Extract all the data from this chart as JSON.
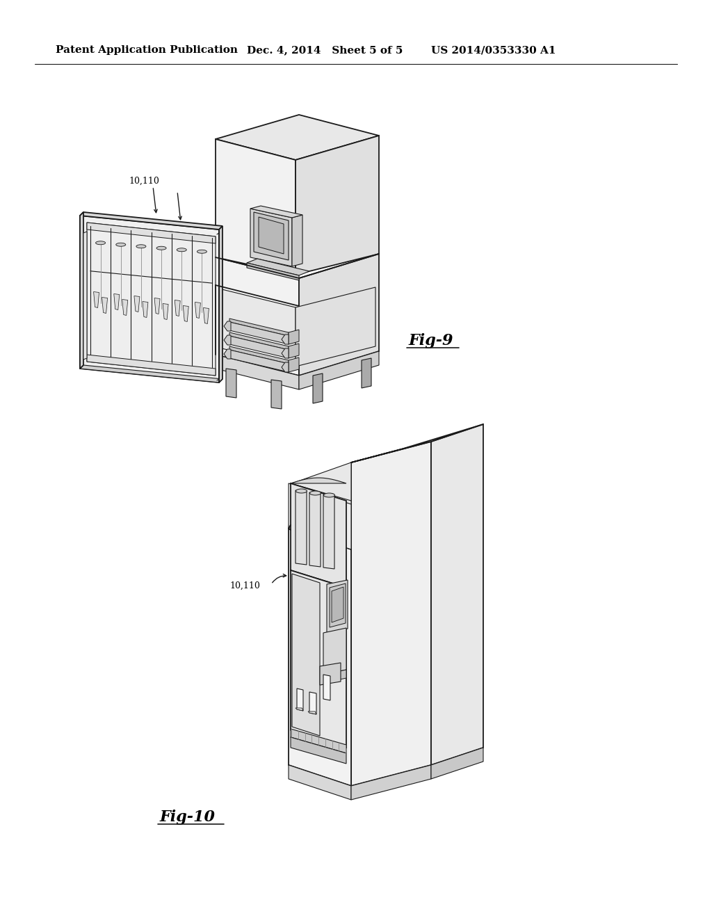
{
  "background_color": "#ffffff",
  "header_left": "Patent Application Publication",
  "header_middle": "Dec. 4, 2014   Sheet 5 of 5",
  "header_right": "US 2014/0353330 A1",
  "line_color": "#1a1a1a",
  "fig9_label": "Fig-9",
  "fig10_label": "Fig-10",
  "ann1_text": "10,110",
  "ann2_text": "10,110"
}
